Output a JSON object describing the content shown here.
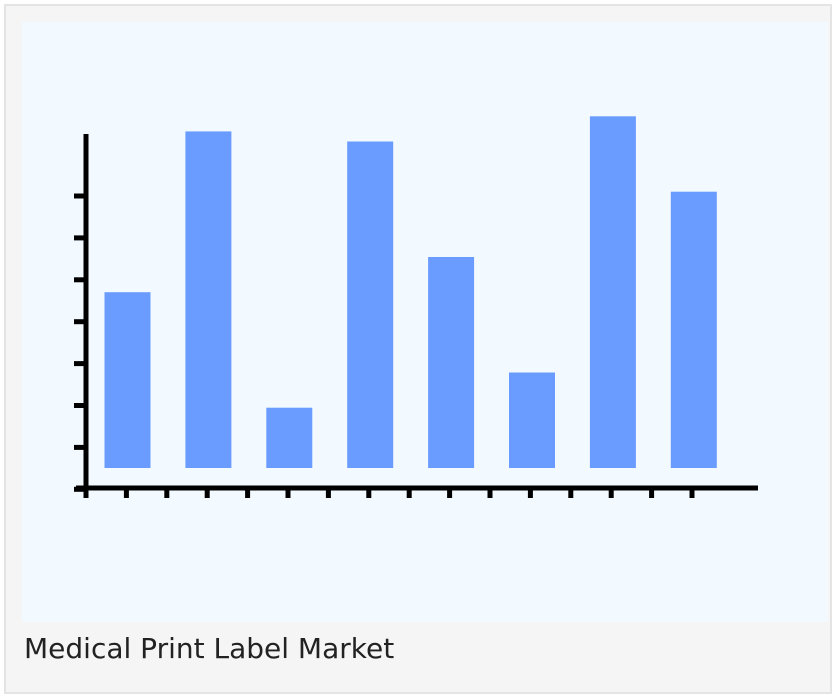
{
  "caption": "Medical Print Label Market",
  "colors": {
    "bar": "#6a9cff",
    "axis": "#000000",
    "plot_bg": "#f3faff"
  },
  "chart_data": {
    "type": "bar",
    "title": "",
    "xlabel": "",
    "ylabel": "",
    "categories": [
      "",
      "",
      "",
      "",
      "",
      "",
      "",
      ""
    ],
    "values": [
      3.5,
      6.7,
      1.2,
      6.5,
      4.2,
      1.9,
      7.0,
      5.5
    ],
    "ylim": [
      0,
      8.4
    ],
    "y_ticks": 8,
    "x_ticks": 16,
    "grid": false,
    "legend": "none"
  }
}
